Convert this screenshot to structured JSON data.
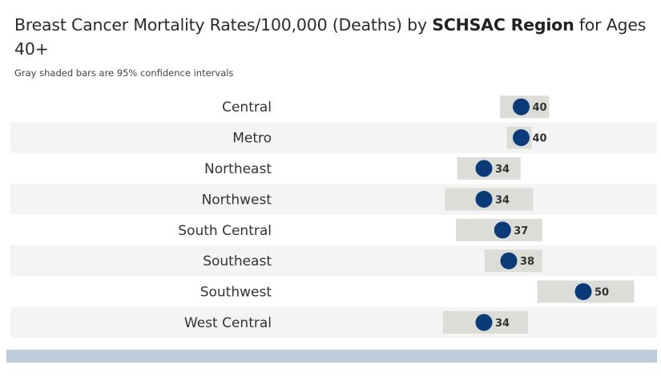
{
  "title": {
    "part1": "Breast Cancer Mortality Rates/100,000 (Deaths) by ",
    "bold": "SCHSAC Region",
    "part2": " for Ages 40+"
  },
  "subtitle": "Gray shaded bars are 95% confidence intervals",
  "colors": {
    "dot": "#0b3a78",
    "ci_bar": "#dcdcd8",
    "row_band": "#f4f4f4",
    "footer_bar": "#bdccd8"
  },
  "chart_data": {
    "type": "scatter",
    "title": "Breast Cancer Mortality Rates/100,000 (Deaths) by SCHSAC Region for Ages 40+",
    "subtitle": "Gray shaded bars are 95% confidence intervals",
    "xlabel": "",
    "ylabel": "",
    "xlim": [
      20,
      65
    ],
    "grid": false,
    "categories": [
      "Central",
      "Metro",
      "Northeast",
      "Northwest",
      "South Central",
      "Southeast",
      "Southwest",
      "West Central"
    ],
    "values": [
      40,
      40,
      34,
      34,
      37,
      38,
      50,
      34
    ],
    "value_labels": [
      "40",
      "40",
      "34",
      "34",
      "37",
      "38",
      "50",
      "34"
    ],
    "ci_lower": [
      36.6,
      37.7,
      29.7,
      27.7,
      29.5,
      34.1,
      42.6,
      27.4
    ],
    "ci_upper": [
      44.5,
      41.7,
      39.9,
      41.9,
      43.4,
      43.4,
      58.2,
      41.1
    ]
  }
}
